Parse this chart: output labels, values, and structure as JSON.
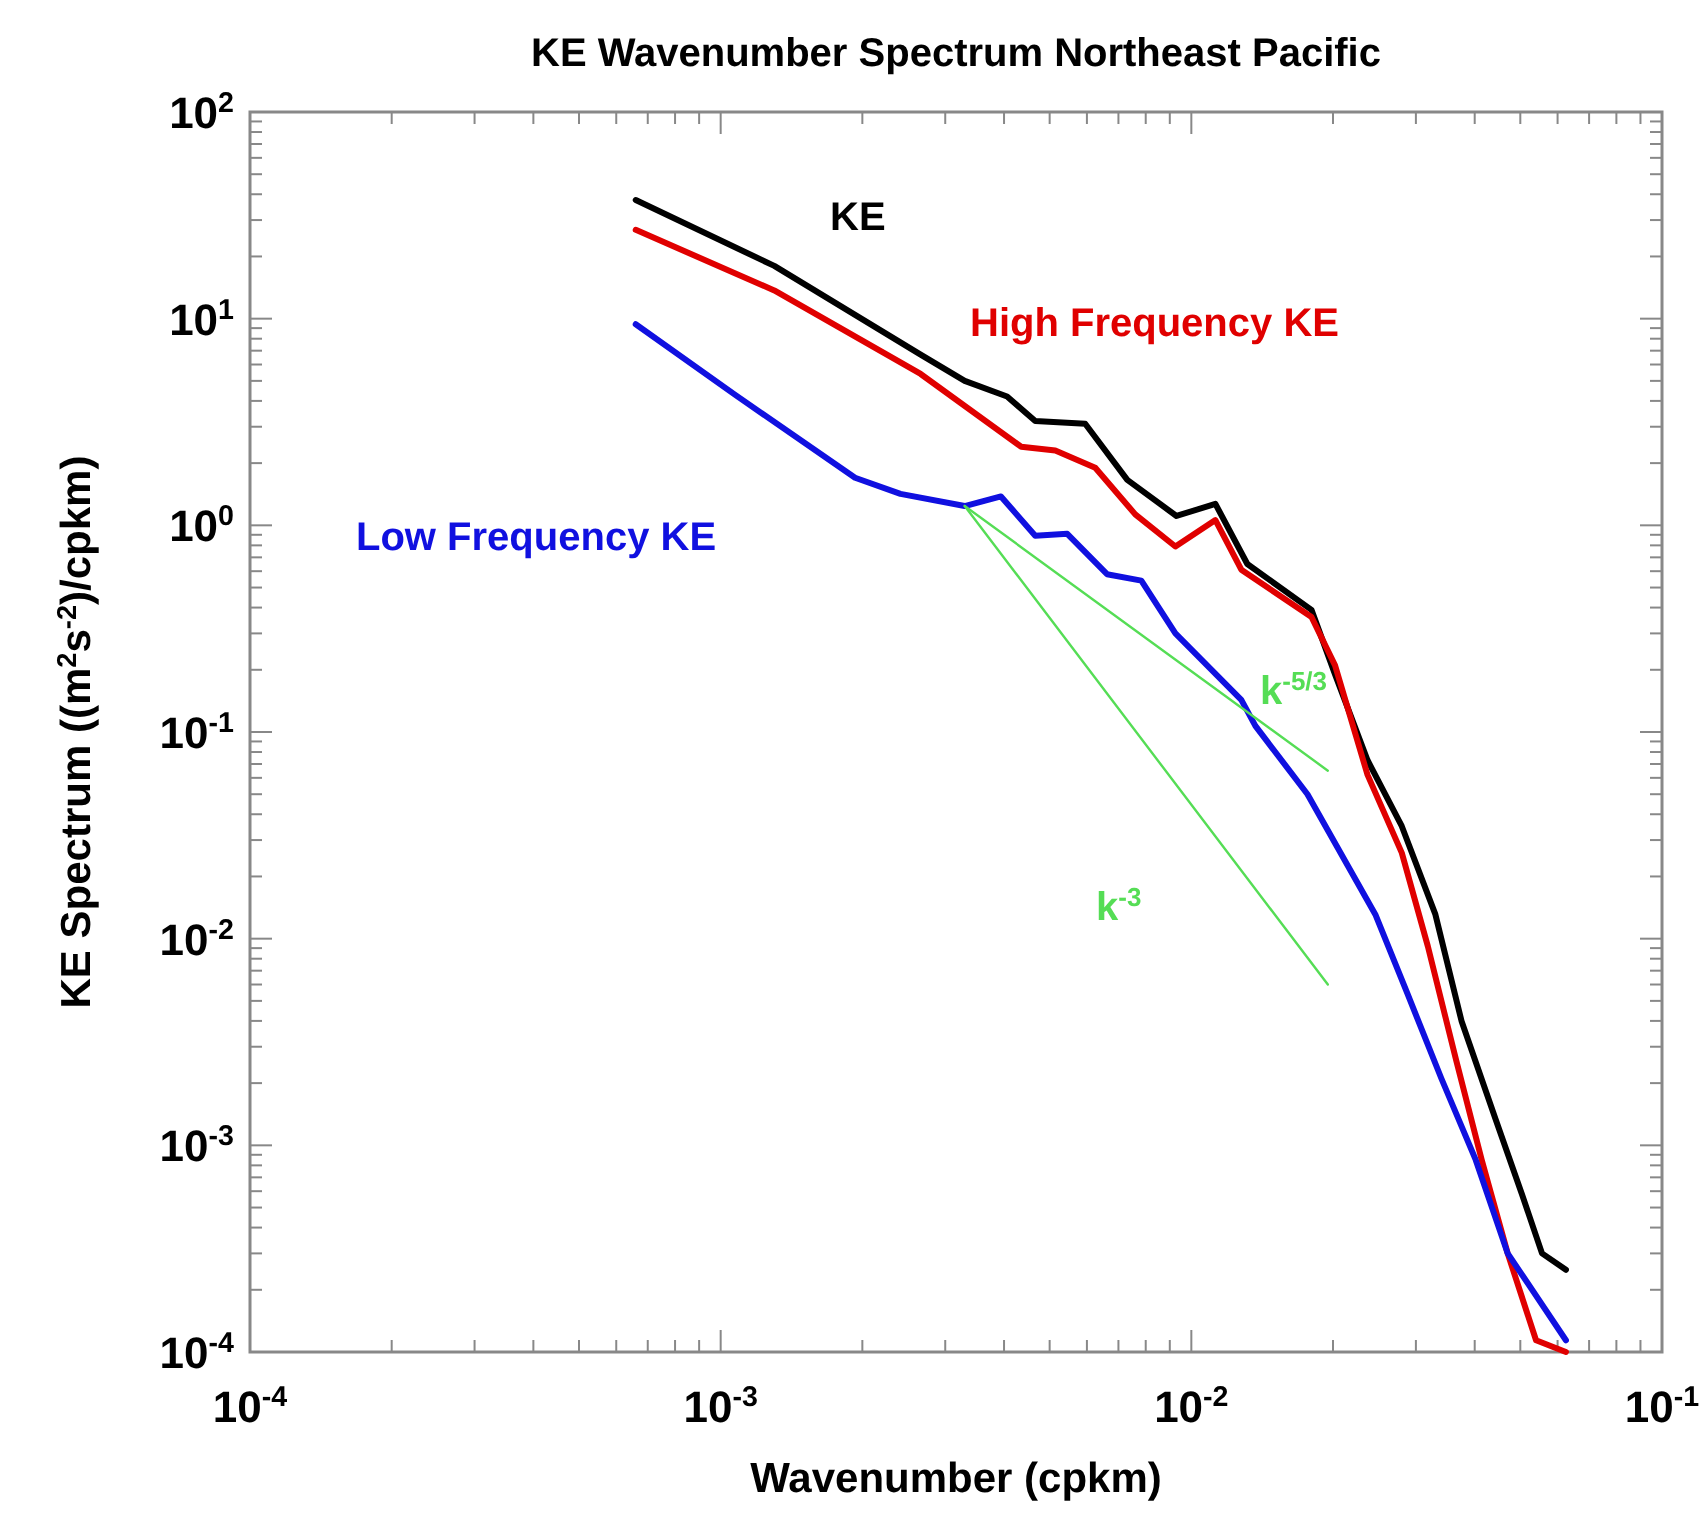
{
  "chart_data": {
    "type": "line",
    "title": "KE Wavenumber Spectrum Northeast Pacific",
    "xlabel": "Wavenumber (cpkm)",
    "ylabel": "KE Spectrum ((m$^{2}$s$^{-2}$)/cpkm)",
    "log": "xy",
    "legend": false,
    "grid": false,
    "line_style": "solid",
    "marker": "none",
    "xlim": [
      0.0001,
      0.1
    ],
    "ylim": [
      0.0001,
      100
    ],
    "xticks": [
      {
        "value": 0.0001,
        "label": "10$^{-4}$"
      },
      {
        "value": 0.0002,
        "label": null
      },
      {
        "value": 0.0003,
        "label": null
      },
      {
        "value": 0.0004,
        "label": null
      },
      {
        "value": 0.0005,
        "label": null
      },
      {
        "value": 0.0006,
        "label": null
      },
      {
        "value": 0.0007,
        "label": null
      },
      {
        "value": 0.0008,
        "label": null
      },
      {
        "value": 0.0009,
        "label": null
      },
      {
        "value": 0.001,
        "label": "10$^{-3}$"
      },
      {
        "value": 0.002,
        "label": null
      },
      {
        "value": 0.003,
        "label": null
      },
      {
        "value": 0.004,
        "label": null
      },
      {
        "value": 0.005,
        "label": null
      },
      {
        "value": 0.006,
        "label": null
      },
      {
        "value": 0.007,
        "label": null
      },
      {
        "value": 0.008,
        "label": null
      },
      {
        "value": 0.009,
        "label": null
      },
      {
        "value": 0.01,
        "label": "10$^{-2}$"
      },
      {
        "value": 0.02,
        "label": null
      },
      {
        "value": 0.03,
        "label": null
      },
      {
        "value": 0.04,
        "label": null
      },
      {
        "value": 0.05,
        "label": null
      },
      {
        "value": 0.06,
        "label": null
      },
      {
        "value": 0.07,
        "label": null
      },
      {
        "value": 0.08,
        "label": null
      },
      {
        "value": 0.09,
        "label": null
      },
      {
        "value": 0.1,
        "label": "10$^{-1}$"
      }
    ],
    "yticks": [
      {
        "value": 0.0001,
        "label": "10$^{-4}$"
      },
      {
        "value": 0.0002,
        "label": null
      },
      {
        "value": 0.0003,
        "label": null
      },
      {
        "value": 0.0004,
        "label": null
      },
      {
        "value": 0.0005,
        "label": null
      },
      {
        "value": 0.0006,
        "label": null
      },
      {
        "value": 0.0007,
        "label": null
      },
      {
        "value": 0.0008,
        "label": null
      },
      {
        "value": 0.0009,
        "label": null
      },
      {
        "value": 0.001,
        "label": "10$^{-3}$"
      },
      {
        "value": 0.002,
        "label": null
      },
      {
        "value": 0.003,
        "label": null
      },
      {
        "value": 0.004,
        "label": null
      },
      {
        "value": 0.005,
        "label": null
      },
      {
        "value": 0.006,
        "label": null
      },
      {
        "value": 0.007,
        "label": null
      },
      {
        "value": 0.008,
        "label": null
      },
      {
        "value": 0.009,
        "label": null
      },
      {
        "value": 0.01,
        "label": "10$^{-2}$"
      },
      {
        "value": 0.02,
        "label": null
      },
      {
        "value": 0.03,
        "label": null
      },
      {
        "value": 0.04,
        "label": null
      },
      {
        "value": 0.05,
        "label": null
      },
      {
        "value": 0.06,
        "label": null
      },
      {
        "value": 0.07,
        "label": null
      },
      {
        "value": 0.08,
        "label": null
      },
      {
        "value": 0.09,
        "label": null
      },
      {
        "value": 0.1,
        "label": "10$^{-1}$"
      },
      {
        "value": 0.2,
        "label": null
      },
      {
        "value": 0.3,
        "label": null
      },
      {
        "value": 0.4,
        "label": null
      },
      {
        "value": 0.5,
        "label": null
      },
      {
        "value": 0.6,
        "label": null
      },
      {
        "value": 0.7,
        "label": null
      },
      {
        "value": 0.8,
        "label": null
      },
      {
        "value": 0.9,
        "label": null
      },
      {
        "value": 1,
        "label": "10$^{0}$"
      },
      {
        "value": 2,
        "label": null
      },
      {
        "value": 3,
        "label": null
      },
      {
        "value": 4,
        "label": null
      },
      {
        "value": 5,
        "label": null
      },
      {
        "value": 6,
        "label": null
      },
      {
        "value": 7,
        "label": null
      },
      {
        "value": 8,
        "label": null
      },
      {
        "value": 9,
        "label": null
      },
      {
        "value": 10,
        "label": "10$^{1}$"
      },
      {
        "value": 20,
        "label": null
      },
      {
        "value": 30,
        "label": null
      },
      {
        "value": 40,
        "label": null
      },
      {
        "value": 50,
        "label": null
      },
      {
        "value": 60,
        "label": null
      },
      {
        "value": 70,
        "label": null
      },
      {
        "value": 80,
        "label": null
      },
      {
        "value": 90,
        "label": null
      },
      {
        "value": 100,
        "label": "10$^{2}$"
      }
    ],
    "series": [
      {
        "name": "KE",
        "color": "#000000",
        "x": [
          0.00066,
          0.0013,
          0.00266,
          0.0033,
          0.00406,
          0.00466,
          0.00595,
          0.00731,
          0.0093,
          0.01125,
          0.01315,
          0.018,
          0.0202,
          0.02368,
          0.028,
          0.033,
          0.0375,
          0.0444,
          0.0504,
          0.0556,
          0.0625
        ],
        "values": [
          37.5,
          18,
          6.7,
          5.0,
          4.2,
          3.2,
          3.1,
          1.66,
          1.11,
          1.27,
          0.65,
          0.39,
          0.19,
          0.073,
          0.035,
          0.0131,
          0.004,
          0.00132,
          0.00058,
          0.0003,
          0.00025
        ]
      },
      {
        "name": "High Frequency KE",
        "color": "#e00000",
        "x": [
          0.00066,
          0.0013,
          0.00266,
          0.00435,
          0.00514,
          0.00625,
          0.0076,
          0.00925,
          0.01125,
          0.01277,
          0.018,
          0.0202,
          0.02368,
          0.028,
          0.0318,
          0.0365,
          0.0414,
          0.047,
          0.054,
          0.0625
        ],
        "values": [
          26.9,
          13.7,
          5.4,
          2.4,
          2.3,
          1.9,
          1.13,
          0.79,
          1.06,
          0.61,
          0.36,
          0.21,
          0.062,
          0.026,
          0.0092,
          0.0026,
          0.00085,
          0.0003,
          0.000114,
          0.0001
        ]
      },
      {
        "name": "Low Frequency KE",
        "color": "#1010e0",
        "x": [
          0.00066,
          0.00107,
          0.00193,
          0.00241,
          0.0033,
          0.00394,
          0.00466,
          0.00545,
          0.00662,
          0.00783,
          0.00925,
          0.01277,
          0.01368,
          0.01765,
          0.0246,
          0.0288,
          0.034,
          0.0402,
          0.047,
          0.0625
        ],
        "values": [
          9.4,
          4.3,
          1.7,
          1.42,
          1.24,
          1.38,
          0.89,
          0.91,
          0.58,
          0.54,
          0.3,
          0.143,
          0.107,
          0.05,
          0.0131,
          0.0054,
          0.0021,
          0.00085,
          0.0003,
          0.000114
        ]
      },
      {
        "name": "k$^{-5/3}$",
        "color": "#55dd55",
        "x": [
          0.0033,
          0.0195
        ],
        "values": [
          1.24,
          0.065
        ]
      },
      {
        "name": "k$^{-3}$",
        "color": "#55dd55",
        "x": [
          0.0033,
          0.0195
        ],
        "values": [
          1.24,
          0.006
        ]
      }
    ]
  }
}
